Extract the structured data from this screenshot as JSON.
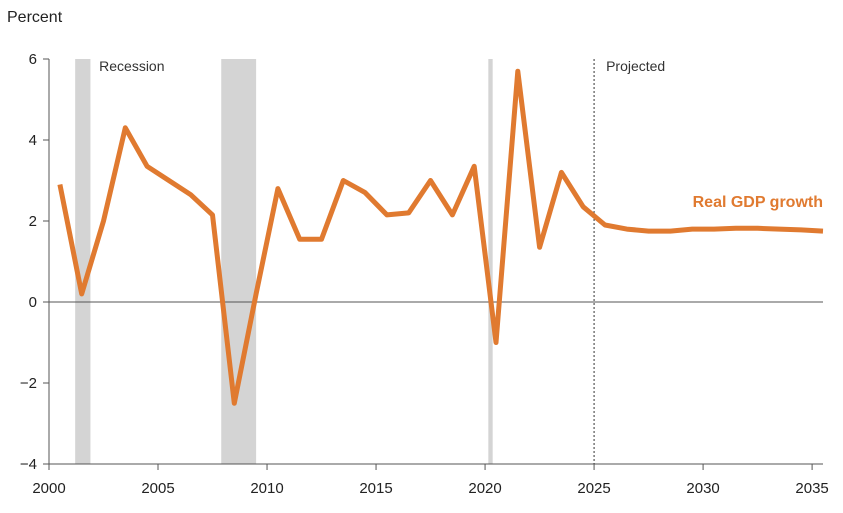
{
  "chart_data": {
    "type": "line",
    "ylabel": "Percent",
    "xlim": [
      2000,
      2035.5
    ],
    "ylim": [
      -4,
      6
    ],
    "yticks": [
      6,
      4,
      2,
      0,
      -2,
      -4
    ],
    "ytick_labels": [
      "6",
      "4",
      "2",
      "0",
      "−2",
      "−4"
    ],
    "xticks": [
      2000,
      2005,
      2010,
      2015,
      2020,
      2025,
      2030,
      2035
    ],
    "xtick_labels": [
      "2000",
      "2005",
      "2010",
      "2015",
      "2020",
      "2025",
      "2030",
      "2035"
    ],
    "grid": false,
    "recession_label": "Recession",
    "projected_label": "Projected",
    "projection_start": 2025,
    "recessions": [
      {
        "start": 2001.2,
        "end": 2001.9
      },
      {
        "start": 2007.9,
        "end": 2009.5
      },
      {
        "start": 2020.15,
        "end": 2020.35
      }
    ],
    "colors": {
      "line": "#e07a30",
      "recession": "#d4d4d4",
      "axis": "#555555"
    },
    "series": [
      {
        "name": "Real GDP growth",
        "x": [
          2000.5,
          2001.5,
          2002.5,
          2003.5,
          2004.5,
          2005.5,
          2006.5,
          2007.5,
          2008.5,
          2009.5,
          2010.5,
          2011.5,
          2012.5,
          2013.5,
          2014.5,
          2015.5,
          2016.5,
          2017.5,
          2018.5,
          2019.5,
          2020.5,
          2021.5,
          2022.5,
          2023.5,
          2024.5,
          2025.5,
          2026.5,
          2027.5,
          2028.5,
          2029.5,
          2030.5,
          2031.5,
          2032.5,
          2033.5,
          2034.5,
          2035.5
        ],
        "values": [
          2.9,
          0.2,
          2.0,
          4.3,
          3.35,
          3.0,
          2.65,
          2.15,
          -2.5,
          0.2,
          2.8,
          1.55,
          1.55,
          3.0,
          2.7,
          2.15,
          2.2,
          3.0,
          2.15,
          3.35,
          -1.0,
          5.7,
          1.35,
          3.2,
          2.35,
          1.9,
          1.8,
          1.75,
          1.75,
          1.8,
          1.8,
          1.82,
          1.82,
          1.8,
          1.78,
          1.75
        ]
      }
    ]
  }
}
